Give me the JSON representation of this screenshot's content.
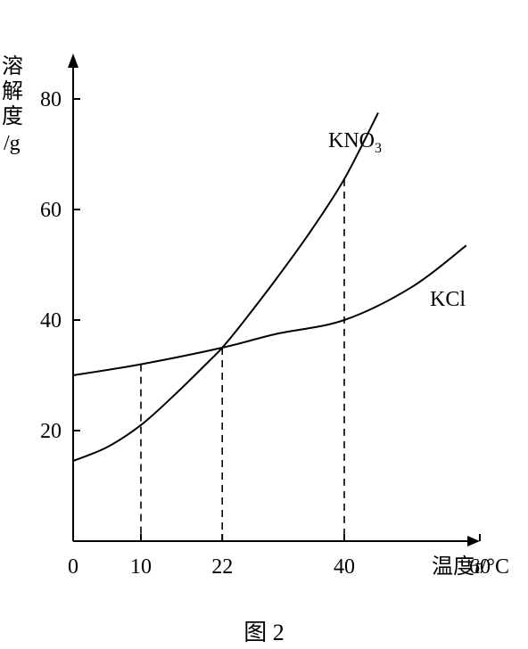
{
  "figure": {
    "caption": "图 2"
  },
  "chart_data": {
    "type": "line",
    "ylabel_chars": [
      "溶",
      "解",
      "度",
      "/g"
    ],
    "xlabel": {
      "prefix": "温度",
      "var": "t",
      "unit": "/°C"
    },
    "xlim": [
      0,
      60
    ],
    "ylim": [
      0,
      80
    ],
    "x_ticks": [
      {
        "value": 0,
        "label": "0"
      },
      {
        "value": 10,
        "label": "10"
      },
      {
        "value": 22,
        "label": "22"
      },
      {
        "value": 40,
        "label": "40"
      },
      {
        "value": 60,
        "label": "60"
      }
    ],
    "y_ticks": [
      {
        "value": 20,
        "label": "20"
      },
      {
        "value": 40,
        "label": "40"
      },
      {
        "value": 60,
        "label": "60"
      },
      {
        "value": 80,
        "label": "80"
      }
    ],
    "series": [
      {
        "name": "KNO",
        "subscript": "3",
        "points": [
          [
            0,
            14.5
          ],
          [
            5,
            17
          ],
          [
            10,
            21
          ],
          [
            15,
            26.5
          ],
          [
            20,
            32.5
          ],
          [
            22,
            35
          ],
          [
            25,
            39.5
          ],
          [
            30,
            47.5
          ],
          [
            35,
            56
          ],
          [
            40,
            65.5
          ],
          [
            45,
            77.5
          ]
        ]
      },
      {
        "name": "KCl",
        "points": [
          [
            0,
            30
          ],
          [
            10,
            32
          ],
          [
            22,
            35
          ],
          [
            30,
            37.5
          ],
          [
            40,
            40
          ],
          [
            50,
            46
          ],
          [
            58,
            53.5
          ]
        ]
      }
    ],
    "guides": [
      {
        "x": 10,
        "y": 32
      },
      {
        "x": 22,
        "y": 35
      },
      {
        "x": 40,
        "y": 65.5
      }
    ]
  }
}
